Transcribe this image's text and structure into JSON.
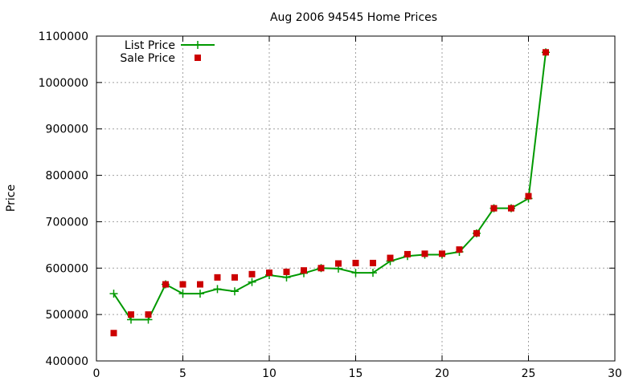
{
  "chart_data": {
    "type": "line",
    "title": "Aug 2006 94545 Home Prices",
    "xlabel": "",
    "ylabel": "Price",
    "xlim": [
      0,
      30
    ],
    "ylim": [
      400000,
      1100000
    ],
    "xticks": [
      0,
      5,
      10,
      15,
      20,
      25,
      30
    ],
    "yticks": [
      400000,
      500000,
      600000,
      700000,
      800000,
      900000,
      1000000,
      1100000
    ],
    "grid": true,
    "legend_position": "top-left",
    "series": [
      {
        "name": "List Price",
        "style": "line-points",
        "color": "#009900",
        "x": [
          1,
          2,
          3,
          4,
          5,
          6,
          7,
          8,
          9,
          10,
          11,
          12,
          13,
          14,
          15,
          16,
          17,
          18,
          19,
          20,
          21,
          22,
          23,
          24,
          25,
          26
        ],
        "y": [
          545000,
          489000,
          489000,
          565000,
          545000,
          545000,
          555000,
          550000,
          570000,
          585000,
          580000,
          589000,
          600000,
          599000,
          590000,
          590000,
          615000,
          626000,
          629000,
          629000,
          635000,
          675000,
          729000,
          729000,
          750000,
          1065000
        ]
      },
      {
        "name": "Sale Price",
        "style": "points",
        "color": "#cc0000",
        "x": [
          1,
          2,
          3,
          4,
          5,
          6,
          7,
          8,
          9,
          10,
          11,
          12,
          13,
          14,
          15,
          16,
          17,
          18,
          19,
          20,
          21,
          22,
          23,
          24,
          25,
          26
        ],
        "y": [
          460000,
          500000,
          500000,
          565000,
          565000,
          565000,
          580000,
          580000,
          587000,
          590000,
          592000,
          595000,
          600000,
          610000,
          611000,
          611000,
          622000,
          630000,
          631000,
          631000,
          640000,
          675000,
          729000,
          729000,
          755000,
          1065000
        ]
      }
    ]
  }
}
